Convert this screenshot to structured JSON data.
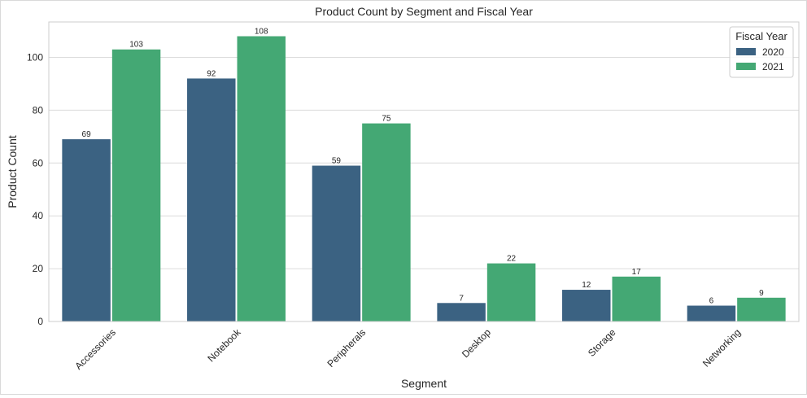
{
  "chart_data": {
    "type": "bar",
    "title": "Product Count by Segment and Fiscal Year",
    "xlabel": "Segment",
    "ylabel": "Product Count",
    "categories": [
      "Accessories",
      "Notebook",
      "Peripherals",
      "Desktop",
      "Storage",
      "Networking"
    ],
    "series": [
      {
        "name": "2020",
        "values": [
          69,
          92,
          59,
          7,
          12,
          6
        ],
        "color": "#3b6282"
      },
      {
        "name": "2021",
        "values": [
          103,
          108,
          75,
          22,
          17,
          9
        ],
        "color": "#44a874"
      }
    ],
    "ylim": [
      0,
      113.4
    ],
    "yticks": [
      0,
      20,
      40,
      60,
      80,
      100
    ],
    "grid": true,
    "legend": {
      "title": "Fiscal Year",
      "placement": "top-right"
    },
    "data_labels": true
  }
}
